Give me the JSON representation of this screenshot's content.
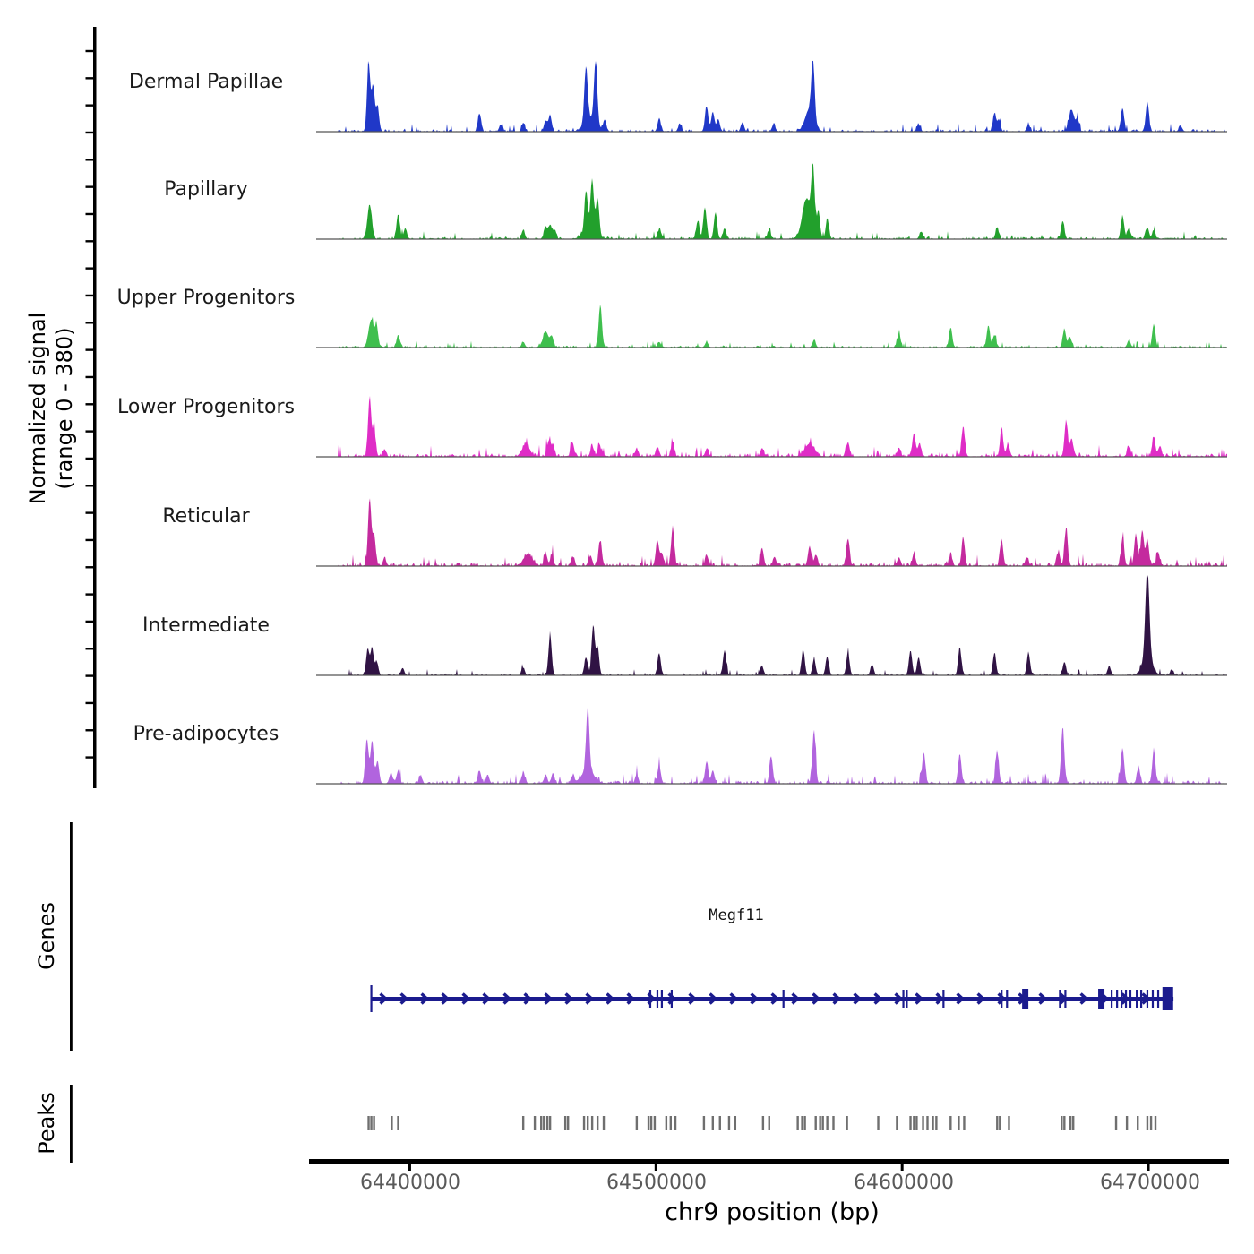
{
  "chart_data": {
    "type": "area",
    "title": "",
    "region_label": "chr9",
    "x_axis": {
      "label": "chr9 position (bp)",
      "range": [
        64362000,
        64732000
      ],
      "ticks": [
        64400000,
        64500000,
        64600000,
        64700000
      ],
      "tick_labels": [
        "64400000",
        "64500000",
        "64600000",
        "64700000"
      ]
    },
    "y_axis": {
      "label_line1": "Normalized signal",
      "label_line2": "(range 0 - 380)",
      "range": [
        0,
        380
      ]
    },
    "sections": {
      "genes_label": "Genes",
      "peaks_label": "Peaks"
    },
    "tracks": [
      {
        "name": "Dermal Papillae",
        "color": "#2038c8",
        "noise": 1.8,
        "seed": 11,
        "peaks": [
          [
            64383300,
            250
          ],
          [
            64385100,
            167
          ],
          [
            64386900,
            93
          ],
          [
            64428300,
            67
          ],
          [
            64437000,
            27
          ],
          [
            64446100,
            33
          ],
          [
            64455200,
            40
          ],
          [
            64457000,
            60
          ],
          [
            64471600,
            207
          ],
          [
            64473400,
            50,
            2500
          ],
          [
            64475500,
            227
          ],
          [
            64479200,
            40
          ],
          [
            64501300,
            47
          ],
          [
            64509700,
            27
          ],
          [
            64520600,
            93
          ],
          [
            64523100,
            73
          ],
          [
            64525300,
            47
          ],
          [
            64535100,
            33
          ],
          [
            64547800,
            27
          ],
          [
            64562400,
            83,
            1800
          ],
          [
            64563800,
            207
          ],
          [
            64606700,
            27
          ],
          [
            64637500,
            67
          ],
          [
            64639300,
            43
          ],
          [
            64651300,
            27
          ],
          [
            64668800,
            80,
            1100
          ],
          [
            64671300,
            40
          ],
          [
            64689500,
            87
          ],
          [
            64699600,
            110
          ],
          [
            64713100,
            20
          ]
        ]
      },
      {
        "name": "Papillary",
        "color": "#22a02c",
        "noise": 1.8,
        "seed": 22,
        "peaks": [
          [
            64383700,
            127,
            900
          ],
          [
            64395300,
            93
          ],
          [
            64398200,
            40
          ],
          [
            64446100,
            33
          ],
          [
            64455200,
            47
          ],
          [
            64457000,
            53
          ],
          [
            64458800,
            33
          ],
          [
            64471600,
            150
          ],
          [
            64473400,
            40,
            2500
          ],
          [
            64474100,
            183
          ],
          [
            64476300,
            133
          ],
          [
            64501300,
            33
          ],
          [
            64517000,
            67
          ],
          [
            64519900,
            117
          ],
          [
            64524200,
            100
          ],
          [
            64527900,
            40
          ],
          [
            64546000,
            33
          ],
          [
            64561300,
            150,
            1800
          ],
          [
            64563800,
            227
          ],
          [
            64566000,
            100
          ],
          [
            64569600,
            73
          ],
          [
            64607800,
            27
          ],
          [
            64638600,
            40
          ],
          [
            64665200,
            67
          ],
          [
            64689500,
            83
          ],
          [
            64692100,
            40
          ],
          [
            64699600,
            43
          ],
          [
            64702200,
            33
          ]
        ]
      },
      {
        "name": "Upper Progenitors",
        "color": "#3fbf4e",
        "noise": 1.4,
        "seed": 33,
        "peaks": [
          [
            64384400,
            100,
            1100
          ],
          [
            64386600,
            67
          ],
          [
            64395300,
            47
          ],
          [
            64446100,
            20
          ],
          [
            64455200,
            60,
            1100
          ],
          [
            64457700,
            40
          ],
          [
            64477400,
            160
          ],
          [
            64501300,
            20
          ],
          [
            64520600,
            20
          ],
          [
            64564200,
            27
          ],
          [
            64598700,
            53
          ],
          [
            64619700,
            73
          ],
          [
            64635000,
            80
          ],
          [
            64637500,
            47
          ],
          [
            64665900,
            67
          ],
          [
            64668100,
            40
          ],
          [
            64692100,
            27
          ],
          [
            64702200,
            87
          ]
        ]
      },
      {
        "name": "Lower Progenitors",
        "color": "#df2cc6",
        "noise": 2.6,
        "seed": 44,
        "peaks": [
          [
            64383700,
            217
          ],
          [
            64385500,
            100
          ],
          [
            64389800,
            27
          ],
          [
            64447200,
            47,
            1500
          ],
          [
            64456300,
            53
          ],
          [
            64458100,
            47
          ],
          [
            64466100,
            53
          ],
          [
            64474100,
            40
          ],
          [
            64477000,
            47
          ],
          [
            64492200,
            27
          ],
          [
            64500600,
            33
          ],
          [
            64506800,
            53
          ],
          [
            64520600,
            27
          ],
          [
            64543100,
            33
          ],
          [
            64562400,
            47,
            2000
          ],
          [
            64578000,
            53
          ],
          [
            64598700,
            33
          ],
          [
            64604800,
            87
          ],
          [
            64607000,
            47
          ],
          [
            64624800,
            113
          ],
          [
            64640400,
            100
          ],
          [
            64643000,
            47
          ],
          [
            64666600,
            133
          ],
          [
            64668800,
            67
          ],
          [
            64692100,
            40
          ],
          [
            64702200,
            73
          ],
          [
            64704700,
            40
          ]
        ]
      },
      {
        "name": "Reticular",
        "color": "#c42a9e",
        "noise": 2.6,
        "seed": 55,
        "peaks": [
          [
            64383700,
            250
          ],
          [
            64385500,
            117
          ],
          [
            64389800,
            27
          ],
          [
            64448000,
            43,
            1800
          ],
          [
            64455200,
            47
          ],
          [
            64457700,
            40
          ],
          [
            64466100,
            33
          ],
          [
            64473400,
            40
          ],
          [
            64477400,
            93
          ],
          [
            64500600,
            93
          ],
          [
            64502400,
            47
          ],
          [
            64506800,
            140
          ],
          [
            64520600,
            40
          ],
          [
            64543100,
            67
          ],
          [
            64548200,
            33
          ],
          [
            64562400,
            73
          ],
          [
            64564900,
            40
          ],
          [
            64578000,
            100
          ],
          [
            64598700,
            33
          ],
          [
            64604800,
            47
          ],
          [
            64619700,
            40
          ],
          [
            64624800,
            100
          ],
          [
            64640400,
            93
          ],
          [
            64650600,
            33
          ],
          [
            64663500,
            50
          ],
          [
            64666600,
            140
          ],
          [
            64689500,
            100
          ],
          [
            64694900,
            117
          ],
          [
            64697500,
            133
          ],
          [
            64699600,
            100
          ],
          [
            64704000,
            50
          ]
        ]
      },
      {
        "name": "Intermediate",
        "color": "#301344",
        "noise": 1.4,
        "seed": 66,
        "peaks": [
          [
            64382900,
            93
          ],
          [
            64384700,
            100
          ],
          [
            64386600,
            50
          ],
          [
            64397100,
            27
          ],
          [
            64446100,
            27
          ],
          [
            64457000,
            143
          ],
          [
            64471600,
            67
          ],
          [
            64474500,
            183
          ],
          [
            64476300,
            100
          ],
          [
            64501300,
            83
          ],
          [
            64527900,
            93
          ],
          [
            64543100,
            33
          ],
          [
            64559800,
            93
          ],
          [
            64564200,
            60
          ],
          [
            64569600,
            67
          ],
          [
            64578000,
            83
          ],
          [
            64587800,
            40
          ],
          [
            64603400,
            93
          ],
          [
            64606700,
            67
          ],
          [
            64623400,
            100
          ],
          [
            64637500,
            83
          ],
          [
            64651300,
            83
          ],
          [
            64665900,
            50
          ],
          [
            64684100,
            33
          ],
          [
            64699600,
            333,
            800
          ],
          [
            64699600,
            67,
            2000
          ],
          [
            64709500,
            20
          ]
        ]
      },
      {
        "name": "Pre-adipocytes",
        "color": "#b164de",
        "noise": 2.4,
        "seed": 77,
        "peaks": [
          [
            64382600,
            167
          ],
          [
            64384700,
            160
          ],
          [
            64386900,
            83
          ],
          [
            64392400,
            40
          ],
          [
            64395300,
            47
          ],
          [
            64404400,
            27
          ],
          [
            64428300,
            47
          ],
          [
            64431600,
            33
          ],
          [
            64446100,
            40
          ],
          [
            64455200,
            33
          ],
          [
            64458100,
            33
          ],
          [
            64466100,
            27
          ],
          [
            64472300,
            233
          ],
          [
            64472300,
            50,
            2500
          ],
          [
            64492200,
            33
          ],
          [
            64501300,
            67
          ],
          [
            64520600,
            83
          ],
          [
            64523100,
            50
          ],
          [
            64546800,
            100
          ],
          [
            64564200,
            200
          ],
          [
            64608800,
            117
          ],
          [
            64623400,
            110
          ],
          [
            64638600,
            117
          ],
          [
            64665200,
            207
          ],
          [
            64689500,
            133
          ],
          [
            64696000,
            60
          ],
          [
            64702200,
            117
          ]
        ]
      }
    ],
    "gene": {
      "name": "Megf11",
      "color": "#1b1b8e",
      "strand": "+",
      "start": 64384400,
      "end": 64710200,
      "exons": [
        [
          64384400,
          700,
          30
        ],
        [
          64497700,
          700,
          20
        ],
        [
          64500600,
          700,
          20
        ],
        [
          64502400,
          700,
          20
        ],
        [
          64506400,
          700,
          20
        ],
        [
          64551800,
          700,
          20
        ],
        [
          64600500,
          700,
          20
        ],
        [
          64601900,
          700,
          20
        ],
        [
          64616800,
          700,
          20
        ],
        [
          64640400,
          700,
          20
        ],
        [
          64642600,
          700,
          20
        ],
        [
          64650000,
          2540,
          22
        ],
        [
          64664100,
          700,
          20
        ],
        [
          64666300,
          700,
          20
        ],
        [
          64680900,
          2540,
          22
        ],
        [
          64685100,
          700,
          20
        ],
        [
          64687300,
          700,
          20
        ],
        [
          64689100,
          700,
          20
        ],
        [
          64690900,
          700,
          20
        ],
        [
          64692700,
          700,
          20
        ],
        [
          64695300,
          700,
          20
        ],
        [
          64697100,
          700,
          20
        ],
        [
          64699600,
          700,
          20
        ],
        [
          64701800,
          700,
          20
        ],
        [
          64704000,
          700,
          20
        ],
        [
          64707900,
          4360,
          26
        ]
      ]
    },
    "peaks_track": {
      "color": "#6f6f6f",
      "positions": [
        64383300,
        64384400,
        64385500,
        64392700,
        64395300,
        64446100,
        64450800,
        64453400,
        64454500,
        64455900,
        64457000,
        64463200,
        64464300,
        64470800,
        64472300,
        64474100,
        64476300,
        64478800,
        64492200,
        64497000,
        64498100,
        64499500,
        64504200,
        64506000,
        64507900,
        64519500,
        64523100,
        64526000,
        64529700,
        64532200,
        64543500,
        64546000,
        64557600,
        64559400,
        64560500,
        64564900,
        64566700,
        64567800,
        64569600,
        64572100,
        64577600,
        64590300,
        64597900,
        64603400,
        64604800,
        64605900,
        64608500,
        64610300,
        64612500,
        64613900,
        64619700,
        64623000,
        64625200,
        64638600,
        64639700,
        64643400,
        64664800,
        64665900,
        64668400,
        64669500,
        64686900,
        64691300,
        64695700,
        64699600,
        64701100,
        64702900
      ]
    }
  }
}
